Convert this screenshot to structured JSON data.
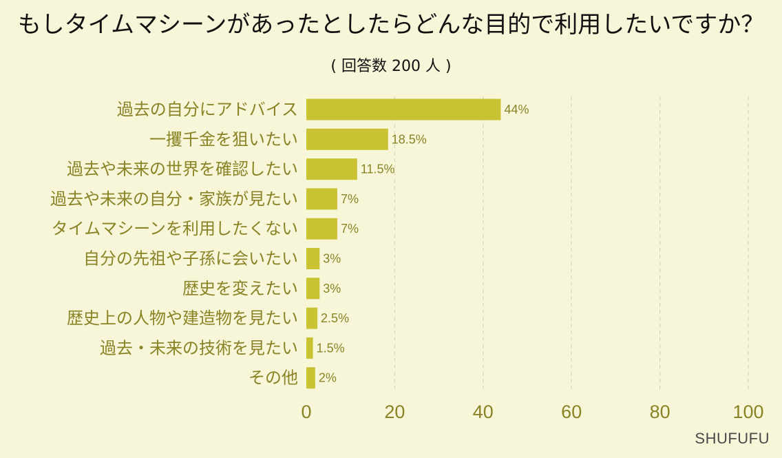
{
  "header": {
    "title": "もしタイムマシーンがあったとしたらどんな目的で利用したいですか？",
    "subtitle": "( 回答数 200 人 )"
  },
  "brand": {
    "name": "SHUFUFU"
  },
  "colors": {
    "background": "#f7f6d8",
    "bar": "#c9c233",
    "text": "#8a8326",
    "grid": "#d6d4b9"
  },
  "chart_data": {
    "type": "bar",
    "orientation": "horizontal",
    "title": "もしタイムマシーンがあったとしたらどんな目的で利用したいですか？",
    "subtitle": "( 回答数 200 人 )",
    "categories": [
      "過去の自分にアドバイス",
      "一攫千金を狙いたい",
      "過去や未来の世界を確認したい",
      "過去や未来の自分・家族が見たい",
      "タイムマシーンを利用したくない",
      "自分の先祖や子孫に会いたい",
      "歴史を変えたい",
      "歴史上の人物や建造物を見たい",
      "過去・未来の技術を見たい",
      "その他"
    ],
    "values": [
      44,
      18.5,
      11.5,
      7,
      7,
      3,
      3,
      2.5,
      1.5,
      2
    ],
    "value_labels": [
      "44%",
      "18.5%",
      "11.5%",
      "7%",
      "7%",
      "3%",
      "3%",
      "2.5%",
      "1.5%",
      "2%"
    ],
    "xlim": [
      0,
      100
    ],
    "xticks": [
      0,
      20,
      40,
      60,
      80,
      100
    ],
    "xtick_labels": [
      "0",
      "20",
      "40",
      "60",
      "80",
      "100"
    ],
    "grid": true,
    "xlabel": "",
    "ylabel": ""
  }
}
